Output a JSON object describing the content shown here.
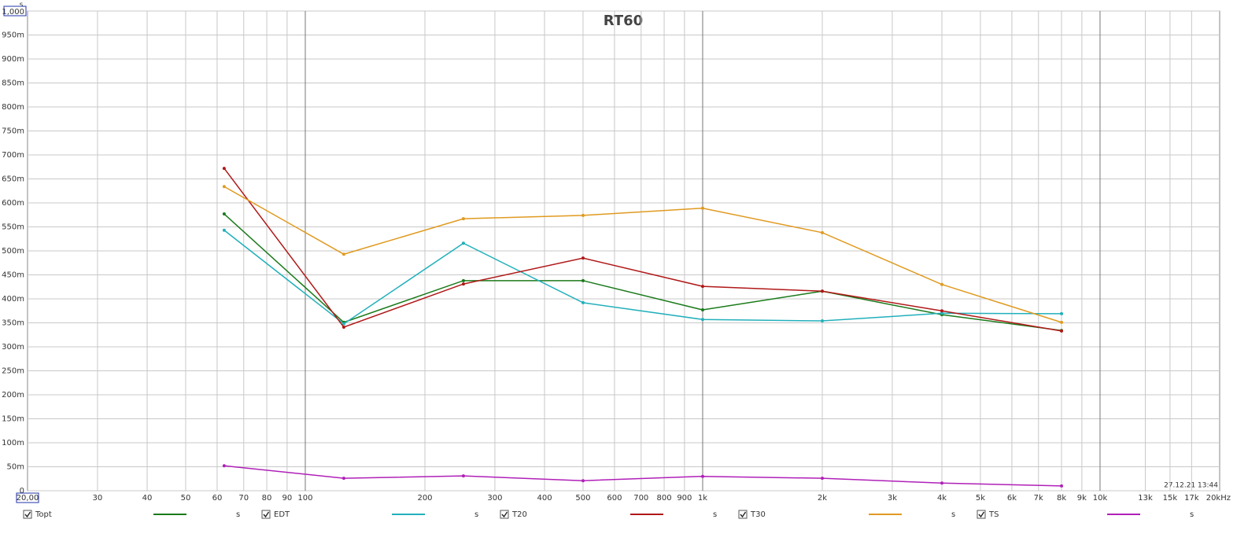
{
  "chart_data": {
    "type": "line",
    "title": "RT60",
    "y_unit": "s",
    "timestamp": "27.12.21 13:44",
    "x": [
      62.5,
      125,
      250,
      500,
      1000,
      2000,
      4000,
      8000
    ],
    "xlim": [
      20,
      20000
    ],
    "log_x": true,
    "xticks": [
      {
        "value": 20,
        "label": "20,00"
      },
      30,
      40,
      50,
      60,
      70,
      80,
      90,
      100,
      200,
      300,
      400,
      500,
      600,
      700,
      800,
      900,
      {
        "value": 1000,
        "label": "1k"
      },
      {
        "value": 2000,
        "label": "2k"
      },
      {
        "value": 3000,
        "label": "3k"
      },
      {
        "value": 4000,
        "label": "4k"
      },
      {
        "value": 5000,
        "label": "5k"
      },
      {
        "value": 6000,
        "label": "6k"
      },
      {
        "value": 7000,
        "label": "7k"
      },
      {
        "value": 8000,
        "label": "8k"
      },
      {
        "value": 9000,
        "label": "9k"
      },
      {
        "value": 10000,
        "label": "10k"
      },
      {
        "value": 13000,
        "label": "13k"
      },
      {
        "value": 15000,
        "label": "15k"
      },
      {
        "value": 17000,
        "label": "17k"
      },
      {
        "value": 20000,
        "label": "20kHz"
      }
    ],
    "ylim": [
      0,
      1
    ],
    "yticks": [
      0,
      {
        "value": 0.05,
        "label": "50m"
      },
      {
        "value": 0.1,
        "label": "100m"
      },
      {
        "value": 0.15,
        "label": "150m"
      },
      {
        "value": 0.2,
        "label": "200m"
      },
      {
        "value": 0.25,
        "label": "250m"
      },
      {
        "value": 0.3,
        "label": "300m"
      },
      {
        "value": 0.35,
        "label": "350m"
      },
      {
        "value": 0.4,
        "label": "400m"
      },
      {
        "value": 0.45,
        "label": "450m"
      },
      {
        "value": 0.5,
        "label": "500m"
      },
      {
        "value": 0.55,
        "label": "550m"
      },
      {
        "value": 0.6,
        "label": "600m"
      },
      {
        "value": 0.65,
        "label": "650m"
      },
      {
        "value": 0.7,
        "label": "700m"
      },
      {
        "value": 0.75,
        "label": "750m"
      },
      {
        "value": 0.8,
        "label": "800m"
      },
      {
        "value": 0.85,
        "label": "850m"
      },
      {
        "value": 0.9,
        "label": "900m"
      },
      {
        "value": 0.95,
        "label": "950m"
      },
      {
        "value": 1,
        "label": "1,000"
      }
    ],
    "grid": true,
    "series": [
      {
        "name": "Topt",
        "color": "#1a7a1a",
        "unit": "s",
        "values": [
          0.577,
          0.351,
          0.438,
          0.438,
          0.377,
          0.416,
          0.367,
          0.334
        ]
      },
      {
        "name": "EDT",
        "color": "#22b0bb",
        "unit": "s",
        "values": [
          0.543,
          0.348,
          0.516,
          0.392,
          0.357,
          0.354,
          0.37,
          0.369
        ]
      },
      {
        "name": "T20",
        "color": "#b01818",
        "unit": "s",
        "values": [
          0.672,
          0.341,
          0.431,
          0.485,
          0.426,
          0.416,
          0.375,
          0.333
        ]
      },
      {
        "name": "T30",
        "color": "#e09a20",
        "unit": "s",
        "values": [
          0.634,
          0.493,
          0.567,
          0.574,
          0.589,
          0.538,
          0.43,
          0.351
        ]
      },
      {
        "name": "TS",
        "color": "#b020b8",
        "unit": "s",
        "values": [
          0.052,
          0.026,
          0.031,
          0.021,
          0.03,
          0.026,
          0.016,
          0.01
        ]
      }
    ]
  }
}
